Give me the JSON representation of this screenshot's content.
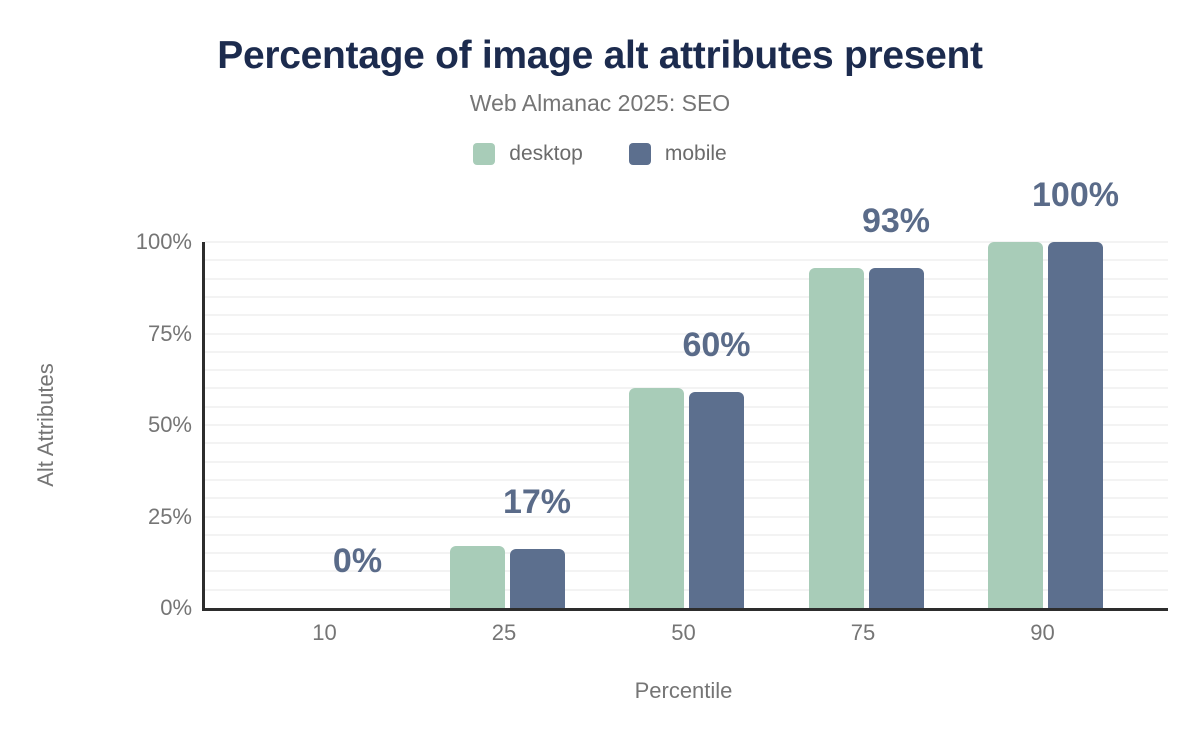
{
  "chart": {
    "title": "Percentage of image alt attributes present",
    "subtitle": "Web Almanac 2025: SEO"
  },
  "chart_data": {
    "type": "bar",
    "title": "Percentage of image alt attributes present",
    "subtitle": "Web Almanac 2025: SEO",
    "categories": [
      "10",
      "25",
      "50",
      "75",
      "90"
    ],
    "series": [
      {
        "name": "desktop",
        "color": "#a8ccb8",
        "values": [
          0,
          17,
          60,
          93,
          100
        ]
      },
      {
        "name": "mobile",
        "color": "#5c6f8e",
        "values": [
          0,
          16,
          59,
          93,
          100
        ]
      }
    ],
    "data_labels": [
      "0%",
      "17%",
      "60%",
      "93%",
      "100%"
    ],
    "xlabel": "Percentile",
    "ylabel": "Alt Attributes",
    "ylim": [
      0,
      100
    ],
    "y_ticks": [
      {
        "value": 0,
        "label": "0%"
      },
      {
        "value": 25,
        "label": "25%"
      },
      {
        "value": 50,
        "label": "50%"
      },
      {
        "value": 75,
        "label": "75%"
      },
      {
        "value": 100,
        "label": "100%"
      }
    ],
    "grid": {
      "horizontal": true,
      "minor_step_percent": 5
    },
    "legend_position": "top",
    "colors": {
      "title_text": "#1c2b4e",
      "subtitle_text": "#757575",
      "legend_text": "#6b6b6b",
      "data_label_text": "#5a6b89",
      "tick_text": "#757575",
      "axis_line": "#2d2d2d",
      "grid_line": "#f3f3f3",
      "background": "#ffffff"
    }
  }
}
